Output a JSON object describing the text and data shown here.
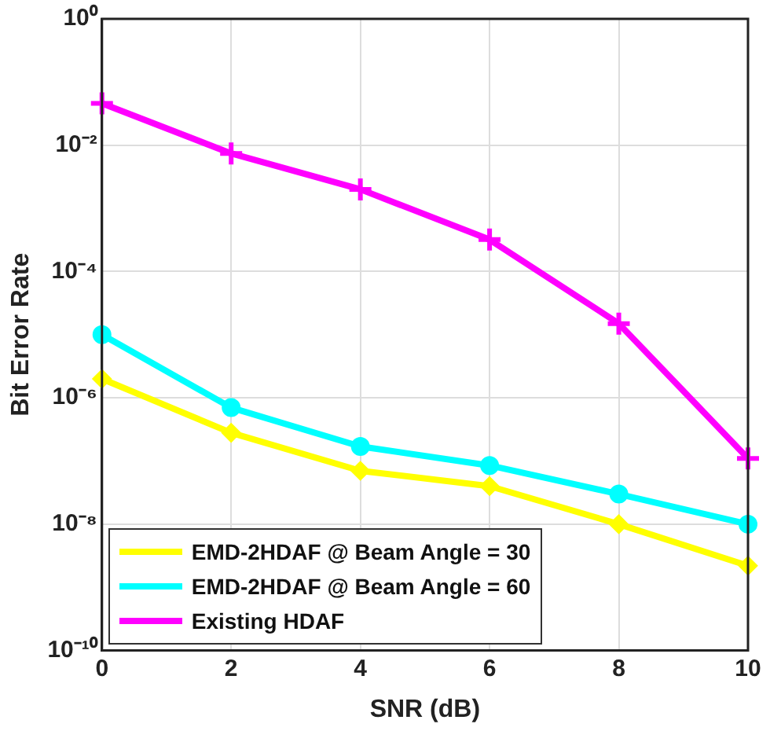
{
  "chart_data": {
    "type": "line",
    "xlabel": "SNR (dB)",
    "ylabel": "Bit Error Rate",
    "x": [
      0,
      2,
      4,
      6,
      8,
      10
    ],
    "series": [
      {
        "name": "EMD-2HDAF @ Beam Angle = 30",
        "color": "#ffff00",
        "marker": "diamond",
        "values": [
          2e-06,
          2.8e-07,
          7e-08,
          4e-08,
          1e-08,
          2.2e-09
        ]
      },
      {
        "name": "EMD-2HDAF @ Beam Angle = 60",
        "color": "#00ffff",
        "marker": "circle",
        "values": [
          1e-05,
          7e-07,
          1.7e-07,
          8.5e-08,
          3e-08,
          1e-08
        ]
      },
      {
        "name": "Existing HDAF",
        "color": "#ff00ff",
        "marker": "cross",
        "values": [
          0.046,
          0.0074,
          0.002,
          0.00032,
          1.5e-05,
          1.1e-07
        ]
      }
    ],
    "log": "y",
    "xlim": [
      0,
      10
    ],
    "xticks": [
      0,
      2,
      4,
      6,
      8,
      10
    ],
    "ylim": [
      1e-10,
      1
    ],
    "yticks": [
      {
        "value": 1e-10,
        "label": "10⁻¹⁰"
      },
      {
        "value": 1e-08,
        "label": "10⁻⁸"
      },
      {
        "value": 1e-06,
        "label": "10⁻⁶"
      },
      {
        "value": 0.0001,
        "label": "10⁻⁴"
      },
      {
        "value": 0.01,
        "label": "10⁻²"
      },
      {
        "value": 1,
        "label": "10⁰"
      }
    ],
    "grid": true,
    "legend": "bottom left",
    "line_style": "solid"
  }
}
